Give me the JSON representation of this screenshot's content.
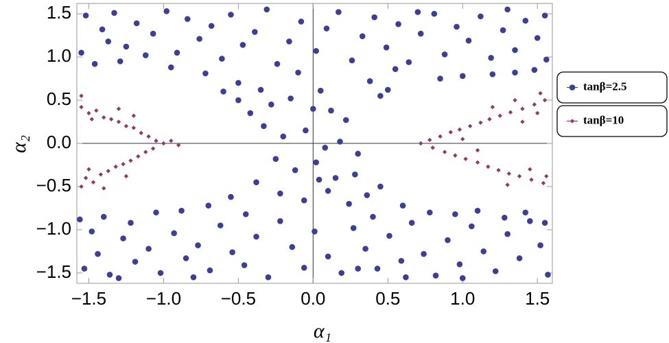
{
  "chart_data": {
    "type": "scatter",
    "x_label": "α₁",
    "y_label": "α₂",
    "xlim": [
      -1.58,
      1.6
    ],
    "ylim": [
      -1.62,
      1.62
    ],
    "xticks": [
      {
        "value": -1.5,
        "label": "−1.5"
      },
      {
        "value": -1.0,
        "label": "−1.0"
      },
      {
        "value": -0.5,
        "label": "−0.5"
      },
      {
        "value": 0,
        "label": "0.0"
      },
      0.5,
      {
        "value": 1.0,
        "label": "1.0"
      },
      1.5
    ],
    "yticks": [
      {
        "value": -1.5,
        "label": "−1.5"
      },
      {
        "value": -1.0,
        "label": "−1.0"
      },
      {
        "value": -0.5,
        "label": "−0.5"
      },
      {
        "value": 0,
        "label": "0.0"
      },
      0.5,
      {
        "value": 1.0,
        "label": "1.0"
      },
      1.5
    ],
    "legend": "right",
    "series": [
      {
        "name": "tanβ=2.5",
        "color": "#3d3e97",
        "marker": "circle",
        "x": [
          -1.52,
          -1.41,
          -1.33,
          -1.25,
          -1.18,
          -1.07,
          -0.98,
          -0.91,
          -0.84,
          -0.76,
          -0.68,
          -0.61,
          -0.55,
          -0.47,
          -0.39,
          -0.31,
          -0.24,
          -0.16,
          -0.08,
          0.02,
          0.09,
          0.17,
          0.26,
          0.33,
          0.41,
          0.49,
          0.57,
          0.64,
          0.72,
          0.81,
          0.88,
          0.96,
          1.04,
          1.12,
          1.19,
          1.27,
          1.35,
          1.42,
          1.5,
          1.56,
          -1.55,
          -1.46,
          -1.37,
          -1.29,
          -1.12,
          -0.95,
          -0.72,
          -0.5,
          -0.35,
          0.38,
          0.55,
          0.7,
          1.3,
          1.55,
          1.48,
          1.35,
          1.2,
          1.0,
          0.85,
          0.45,
          -0.28,
          -0.15,
          0.05,
          0.12,
          0.22,
          -0.33,
          -0.2,
          -0.05,
          0.08,
          0.18,
          0.3,
          -0.25,
          -0.12,
          0.02,
          0.15,
          0.28,
          -0.38,
          -0.22,
          -0.06,
          0.1,
          0.24,
          0.36,
          -0.42,
          -0.5,
          0.45,
          0.5,
          -0.6,
          -0.55,
          0.6,
          -0.1,
          0.0,
          0.04,
          -1.53,
          -1.44,
          -1.36,
          -1.27,
          -1.19,
          -1.1,
          -1.02,
          -0.93,
          -0.85,
          -0.77,
          -0.69,
          -0.62,
          -0.54,
          -0.46,
          -0.38,
          -0.3,
          -0.22,
          -0.14,
          -0.06,
          0.01,
          0.1,
          0.19,
          0.27,
          0.35,
          0.43,
          0.51,
          0.59,
          0.66,
          0.74,
          0.82,
          0.9,
          0.98,
          1.06,
          1.14,
          1.22,
          1.3,
          1.38,
          1.45,
          1.52,
          1.57,
          -1.56,
          -1.48,
          -1.4,
          -1.22,
          -1.05,
          -0.88,
          -0.7,
          -0.45,
          0.4,
          0.62,
          0.78,
          0.95,
          1.1,
          1.28,
          1.42,
          1.55,
          -1.3,
          0.3,
          -0.8,
          1.0
        ],
        "y": [
          1.48,
          1.32,
          1.51,
          1.12,
          1.39,
          1.27,
          1.53,
          1.05,
          1.44,
          1.21,
          1.36,
          0.98,
          1.49,
          1.14,
          1.29,
          1.55,
          0.92,
          1.18,
          1.41,
          1.07,
          1.33,
          1.52,
          0.96,
          1.24,
          1.46,
          1.11,
          1.38,
          0.94,
          1.27,
          1.5,
          1.03,
          1.35,
          1.19,
          1.47,
          0.99,
          1.31,
          1.08,
          1.42,
          1.22,
          0.97,
          1.05,
          0.92,
          1.18,
          0.95,
          1.02,
          0.88,
          0.81,
          0.7,
          0.62,
          0.72,
          0.86,
          1.52,
          1.55,
          1.48,
          0.85,
          0.82,
          0.8,
          0.78,
          0.75,
          0.55,
          0.45,
          0.52,
          0.61,
          0.38,
          0.27,
          0.2,
          0.08,
          0.15,
          -0.05,
          0.02,
          -0.12,
          -0.18,
          -0.31,
          -0.22,
          -0.4,
          -0.36,
          -0.45,
          -0.58,
          -0.66,
          -0.55,
          -0.7,
          -0.6,
          0.35,
          0.5,
          -0.5,
          0.62,
          0.6,
          -0.62,
          -0.72,
          0.82,
          0.4,
          -0.42,
          -1.45,
          -1.28,
          -1.52,
          -1.1,
          -1.37,
          -1.22,
          -1.5,
          -1.04,
          -1.33,
          -1.18,
          -1.47,
          -0.95,
          -1.26,
          -1.41,
          -1.08,
          -1.55,
          -0.9,
          -1.2,
          -1.44,
          -1.02,
          -1.31,
          -1.5,
          -0.98,
          -1.22,
          -1.45,
          -1.07,
          -1.36,
          -0.92,
          -1.28,
          -1.53,
          -1.12,
          -1.4,
          -0.96,
          -1.25,
          -1.48,
          -1.05,
          -1.33,
          -0.9,
          -1.18,
          -1.52,
          -0.88,
          -1.02,
          -0.85,
          -0.92,
          -0.8,
          -0.78,
          -0.72,
          -0.82,
          -0.85,
          -1.55,
          -0.8,
          -0.82,
          -0.78,
          -0.86,
          -0.8,
          -0.92,
          -1.56,
          -1.45,
          -1.55,
          -1.56
        ]
      },
      {
        "name": "tanβ=10",
        "color": "#8e3b6b",
        "marker": "diamond",
        "x": [
          -1.55,
          -1.5,
          -1.45,
          -1.4,
          -1.35,
          -1.3,
          -1.25,
          -1.2,
          -1.15,
          -1.1,
          -1.05,
          -1.0,
          -1.52,
          -1.47,
          -1.42,
          -1.37,
          -1.32,
          -1.27,
          -1.22,
          -1.17,
          -1.12,
          -1.07,
          -0.95,
          -1.55,
          -1.48,
          -1.3,
          -1.2,
          -1.4,
          -1.5,
          -1.25,
          -0.9,
          -1.55,
          0.72,
          0.78,
          0.85,
          0.92,
          0.98,
          1.05,
          1.12,
          1.18,
          1.25,
          1.32,
          1.4,
          1.48,
          1.55,
          0.8,
          0.88,
          0.95,
          1.02,
          1.1,
          1.17,
          1.24,
          1.31,
          1.38,
          1.46,
          1.54,
          1.2,
          1.35,
          1.5,
          1.45,
          1.3,
          1.56,
          1.0,
          1.1,
          1.4,
          1.52
        ],
        "y": [
          0.42,
          0.35,
          0.38,
          0.3,
          0.28,
          0.25,
          0.2,
          0.18,
          0.12,
          0.08,
          0.03,
          0.0,
          -0.4,
          -0.45,
          -0.36,
          -0.32,
          -0.27,
          -0.24,
          -0.2,
          -0.15,
          -0.1,
          -0.06,
          0.03,
          0.55,
          0.28,
          0.4,
          0.32,
          -0.52,
          -0.3,
          -0.38,
          -0.02,
          -0.5,
          0.0,
          0.04,
          0.08,
          0.13,
          0.16,
          0.2,
          0.24,
          0.28,
          0.32,
          0.36,
          0.4,
          0.45,
          0.5,
          -0.05,
          -0.1,
          -0.14,
          -0.18,
          -0.22,
          -0.27,
          -0.31,
          -0.35,
          -0.38,
          -0.42,
          -0.46,
          0.42,
          0.5,
          0.35,
          -0.3,
          -0.48,
          -0.38,
          0.05,
          -0.08,
          0.25,
          0.58
        ]
      }
    ]
  }
}
